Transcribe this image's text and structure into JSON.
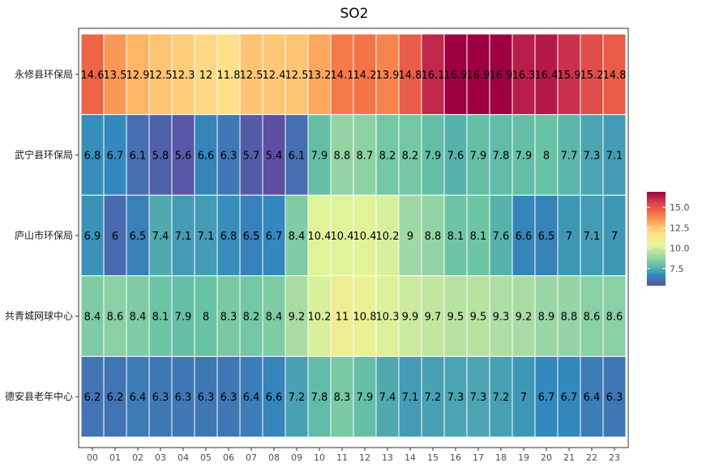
{
  "chart_data": {
    "type": "heatmap",
    "title": "SO2",
    "xlabel": "",
    "ylabel": "",
    "x": [
      "00",
      "01",
      "02",
      "03",
      "04",
      "05",
      "06",
      "07",
      "08",
      "09",
      "10",
      "11",
      "12",
      "13",
      "14",
      "15",
      "16",
      "17",
      "18",
      "19",
      "20",
      "21",
      "22",
      "23"
    ],
    "y": [
      "永修县环保局",
      "武宁县环保局",
      "庐山市环保局",
      "共青城网球中心",
      "德安县老年中心"
    ],
    "values": [
      [
        14.6,
        13.5,
        12.9,
        12.5,
        12.3,
        12,
        11.8,
        12.5,
        12.4,
        12.5,
        13.2,
        14.1,
        14.2,
        13.9,
        14.8,
        16.1,
        16.9,
        16.9,
        16.9,
        16.3,
        16.4,
        15.9,
        15.2,
        14.8
      ],
      [
        6.8,
        6.7,
        6.1,
        5.8,
        5.6,
        6.6,
        6.3,
        5.7,
        5.4,
        6.1,
        7.9,
        8.8,
        8.7,
        8.2,
        8.2,
        7.9,
        7.6,
        7.9,
        7.8,
        7.9,
        8,
        7.7,
        7.3,
        7.1
      ],
      [
        6.9,
        6,
        6.5,
        7.4,
        7.1,
        7.1,
        6.8,
        6.5,
        6.7,
        8.4,
        10.4,
        10.4,
        10.4,
        10.2,
        9,
        8.8,
        8.1,
        8.1,
        7.6,
        6.6,
        6.5,
        7,
        7.1,
        7
      ],
      [
        8.4,
        8.6,
        8.4,
        8.1,
        7.9,
        8,
        8.3,
        8.2,
        8.4,
        9.2,
        10.2,
        11,
        10.8,
        10.3,
        9.9,
        9.7,
        9.5,
        9.5,
        9.3,
        9.2,
        8.9,
        8.8,
        8.6,
        8.6
      ],
      [
        6.2,
        6.2,
        6.4,
        6.3,
        6.3,
        6.3,
        6.3,
        6.4,
        6.6,
        7.2,
        7.8,
        8.3,
        7.9,
        7.4,
        7.1,
        7.2,
        7.3,
        7.3,
        7.2,
        7,
        6.7,
        6.7,
        6.4,
        6.3
      ]
    ],
    "color_scale": {
      "palette": "Spectral (reversed)",
      "domain": [
        5.4,
        16.9
      ],
      "colors": [
        "#5e4fa2",
        "#3288bd",
        "#66c2a5",
        "#abdda4",
        "#e6f598",
        "#fee08b",
        "#fdae61",
        "#f46d43",
        "#d53e4f",
        "#9e0142"
      ]
    },
    "legend": {
      "position": "right",
      "ticks": [
        7.5,
        10.0,
        12.5,
        15.0
      ],
      "tick_labels": [
        "7.5",
        "10.0",
        "12.5",
        "15.0"
      ]
    },
    "grid": false
  }
}
